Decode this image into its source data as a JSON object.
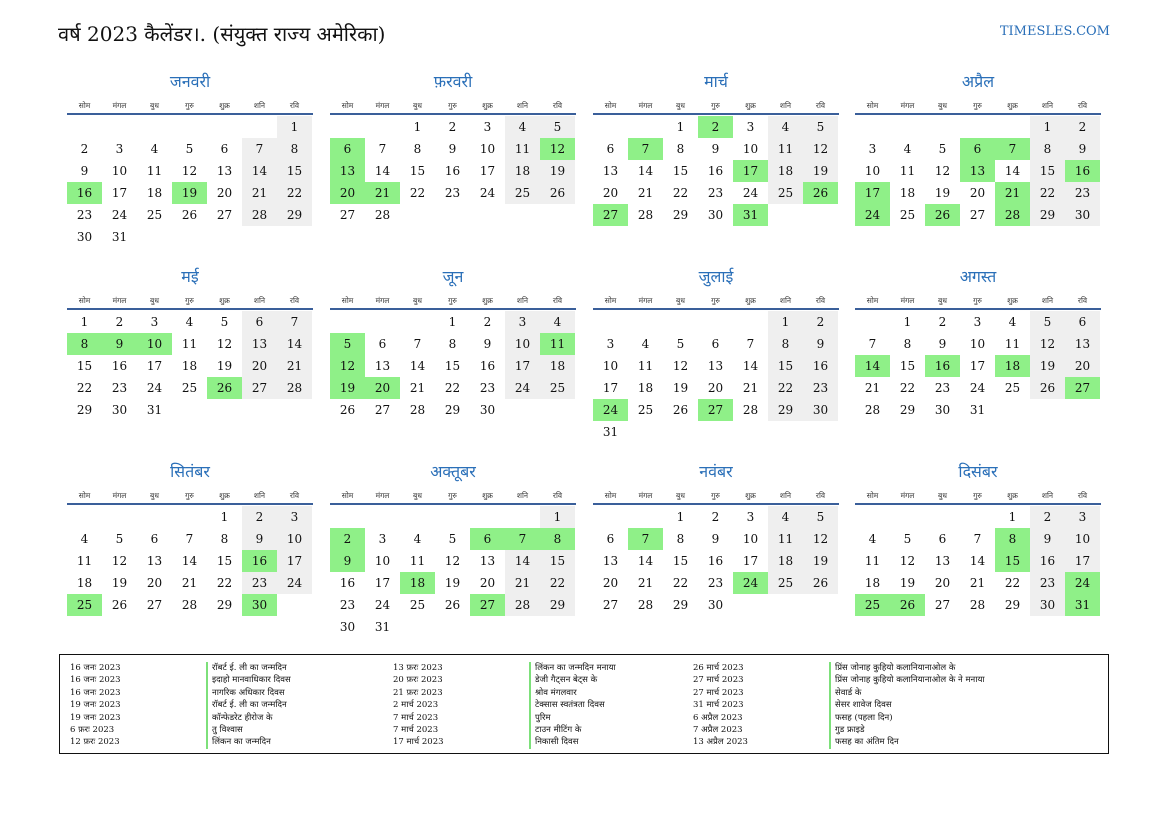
{
  "header": {
    "title": "वर्ष 2023 कैलेंडर।. (संयुक्त राज्य अमेरिका)",
    "site": "TIMESLES.COM"
  },
  "weekdays": [
    "सोम",
    "मंगल",
    "बुध",
    "गुरु",
    "शुक्र",
    "शनि",
    "रवि"
  ],
  "colors": {
    "holiday": "#8ff088",
    "weekend": "#efefef",
    "accent": "#2a6fb8",
    "rule": "#3a5f9a"
  },
  "months": [
    {
      "name": "जनवरी",
      "offset": 6,
      "days": 31,
      "holidays": [
        16,
        19
      ]
    },
    {
      "name": "फ़रवरी",
      "offset": 2,
      "days": 28,
      "holidays": [
        6,
        12,
        13,
        20,
        21
      ]
    },
    {
      "name": "मार्च",
      "offset": 2,
      "days": 31,
      "holidays": [
        2,
        7,
        17,
        26,
        27,
        31
      ]
    },
    {
      "name": "अप्रैल",
      "offset": 5,
      "days": 30,
      "holidays": [
        6,
        7,
        13,
        16,
        17,
        21,
        24,
        26,
        28
      ]
    },
    {
      "name": "मई",
      "offset": 0,
      "days": 31,
      "holidays": [
        8,
        9,
        10,
        26
      ]
    },
    {
      "name": "जून",
      "offset": 3,
      "days": 30,
      "holidays": [
        5,
        11,
        12,
        19,
        20
      ]
    },
    {
      "name": "जुलाई",
      "offset": 5,
      "days": 31,
      "holidays": [
        24,
        27
      ]
    },
    {
      "name": "अगस्त",
      "offset": 1,
      "days": 31,
      "holidays": [
        14,
        16,
        18,
        27
      ]
    },
    {
      "name": "सितंबर",
      "offset": 4,
      "days": 30,
      "holidays": [
        16,
        25,
        30
      ]
    },
    {
      "name": "अक्तूबर",
      "offset": 6,
      "days": 31,
      "holidays": [
        2,
        6,
        7,
        8,
        9,
        18,
        27
      ]
    },
    {
      "name": "नवंबर",
      "offset": 2,
      "days": 30,
      "holidays": [
        7,
        24
      ]
    },
    {
      "name": "दिसंबर",
      "offset": 4,
      "days": 31,
      "holidays": [
        8,
        15,
        24,
        25,
        26,
        31
      ]
    }
  ],
  "legend": [
    [
      {
        "date": "16 जनः 2023",
        "name": "रॉबर्ट ई. ली का जन्मदिन"
      },
      {
        "date": "16 जनः 2023",
        "name": "इदाहो मानवाधिकार दिवस"
      },
      {
        "date": "16 जनः 2023",
        "name": "नागरिक अधिकार दिवस"
      },
      {
        "date": "19 जनः 2023",
        "name": "रॉबर्ट ई. ली का जन्मदिन"
      },
      {
        "date": "19 जनः 2023",
        "name": "कॉन्फेडरेट हीरोज के"
      },
      {
        "date": "6 फ़रः 2023",
        "name": "तु विश्वास"
      },
      {
        "date": "12 फ़रः 2023",
        "name": "लिंकन का जन्मदिन"
      }
    ],
    [
      {
        "date": "13 फ़रः 2023",
        "name": "लिंकन का जन्मदिन मनाया"
      },
      {
        "date": "20 फ़रः 2023",
        "name": "डेजी गैट्सन बेट्स के"
      },
      {
        "date": "21 फ़रः 2023",
        "name": "श्रोव मंगलवार"
      },
      {
        "date": "2 मार्च 2023",
        "name": "टेक्सास स्वतंत्रता दिवस"
      },
      {
        "date": "7 मार्च 2023",
        "name": "पुरिम"
      },
      {
        "date": "7 मार्च 2023",
        "name": "टाउन मीटिंग के"
      },
      {
        "date": "17 मार्च 2023",
        "name": "निकासी दिवस"
      }
    ],
    [
      {
        "date": "26 मार्च 2023",
        "name": "प्रिंस जोनाह कुहियो कलानियानाओल के"
      },
      {
        "date": "27 मार्च 2023",
        "name": "प्रिंस जोनाह कुहियो कलानियानाओल के ने मनाया"
      },
      {
        "date": "27 मार्च 2023",
        "name": "सेवार्ड के"
      },
      {
        "date": "31 मार्च 2023",
        "name": "सेसर शावेज दिवस"
      },
      {
        "date": "6 अप्रैल 2023",
        "name": "फसह (पहला दिन)"
      },
      {
        "date": "7 अप्रैल 2023",
        "name": "गुड फ्राइडे"
      },
      {
        "date": "13 अप्रैल 2023",
        "name": "फसह का अंतिम दिन"
      }
    ]
  ]
}
